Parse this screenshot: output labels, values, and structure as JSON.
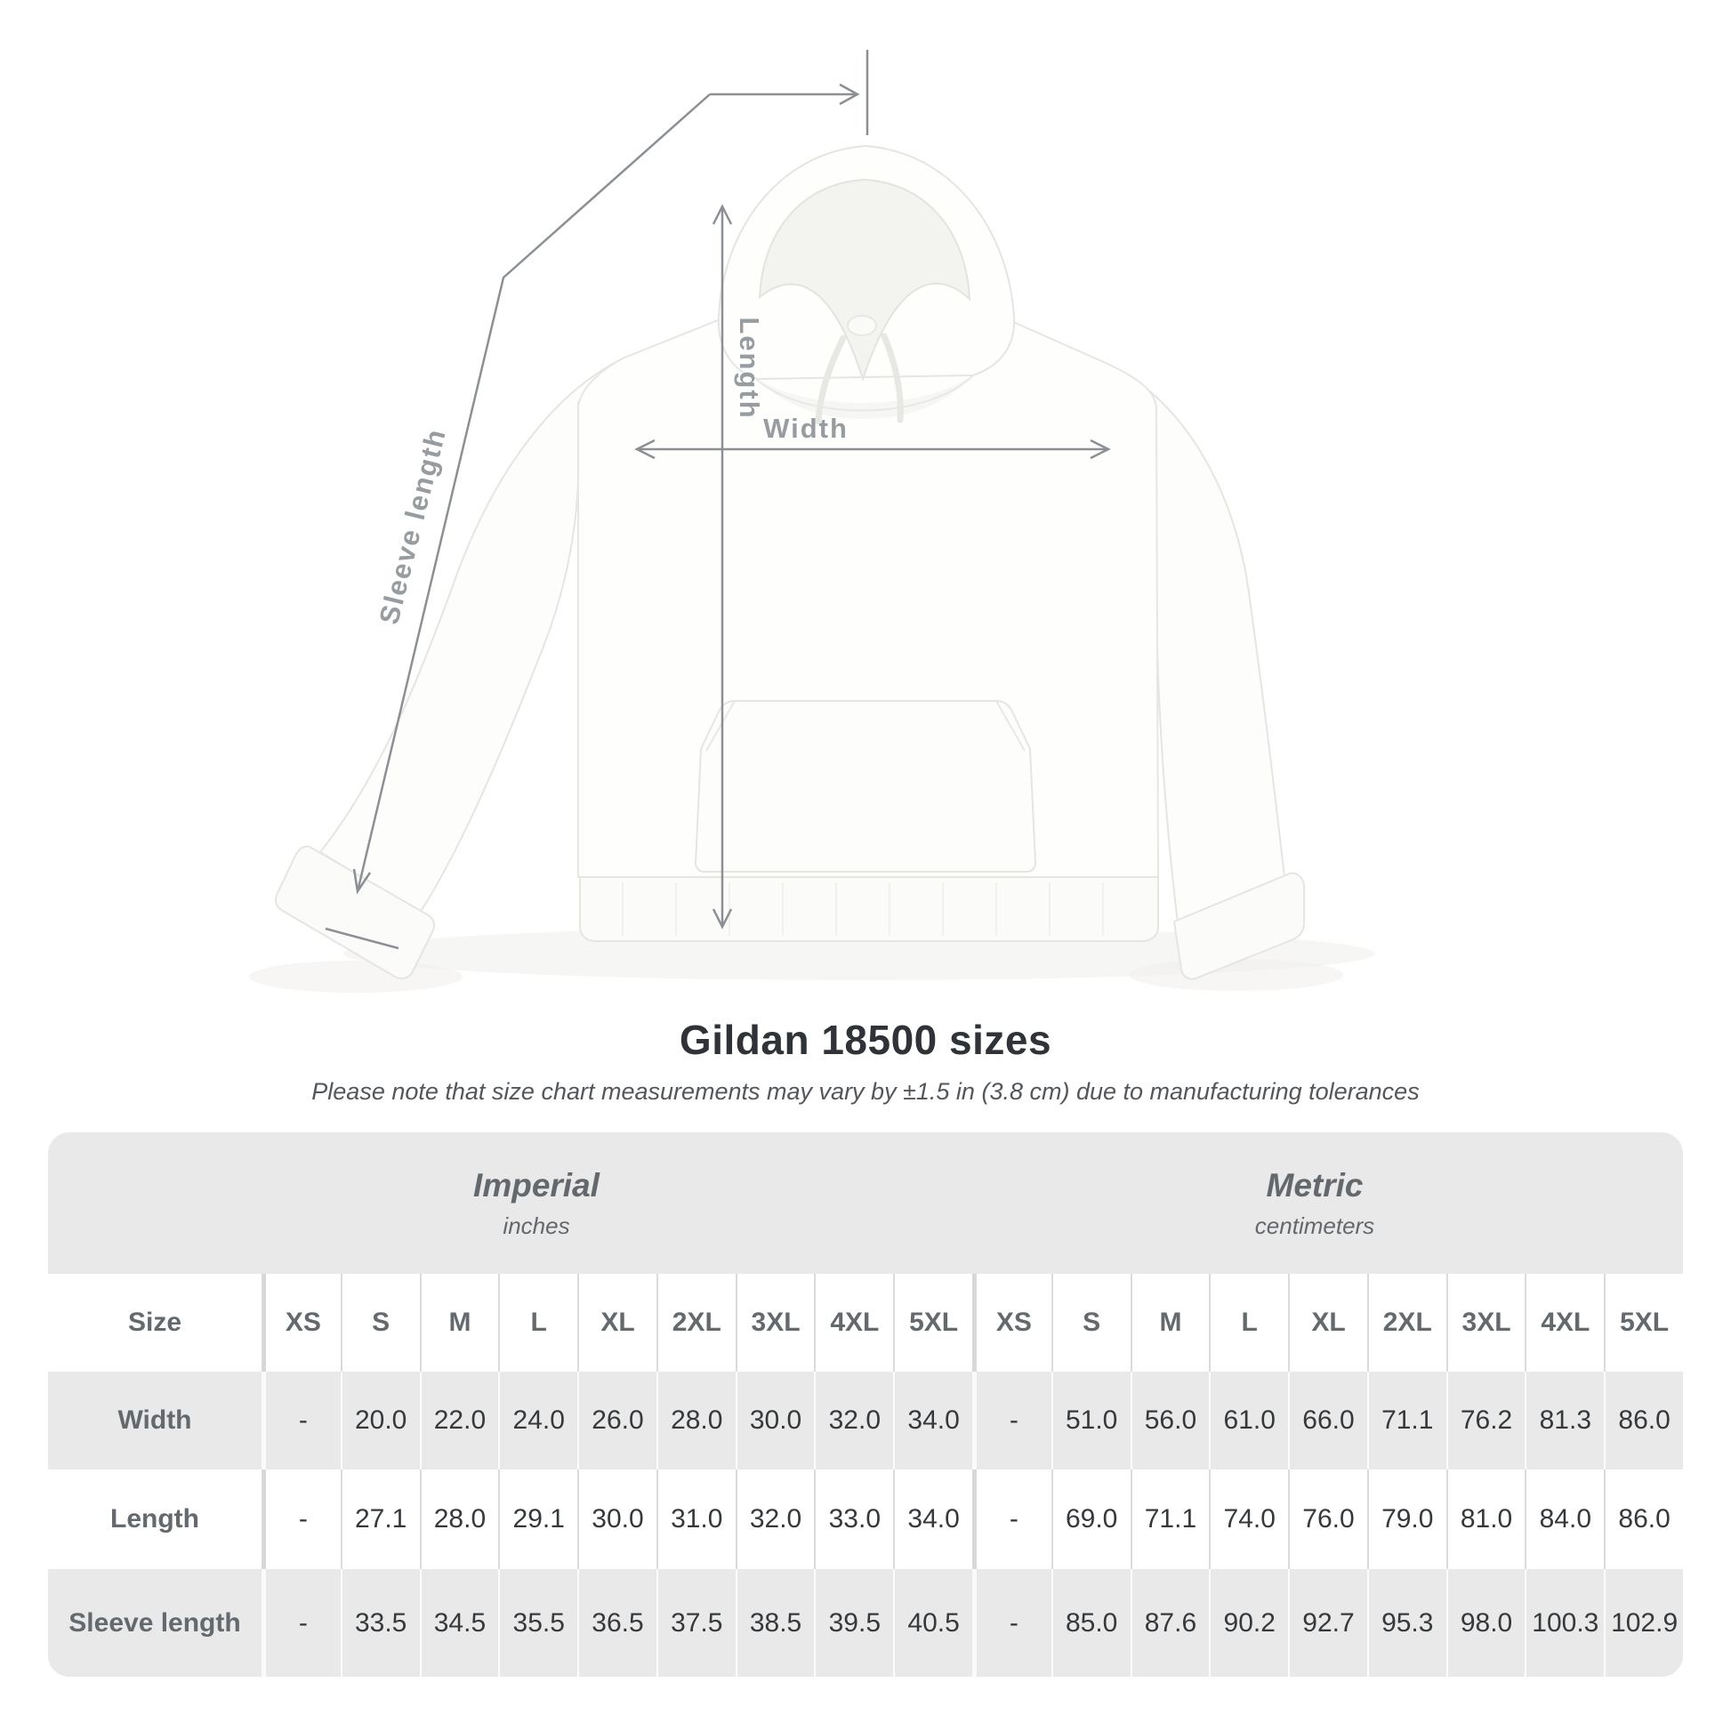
{
  "figure": {
    "length_label": "Length",
    "width_label": "Width",
    "sleeve_label": "Sleeve length",
    "line_color": "#8c9094",
    "label_color": "#979ca0"
  },
  "title": "Gildan 18500 sizes",
  "subtitle": "Please note that size chart measurements may vary by ±1.5 in (3.8 cm) due to manufacturing tolerances",
  "chart_data": {
    "type": "table",
    "title": "Gildan 18500 sizes",
    "note": "Please note that size chart measurements may vary by ±1.5 in (3.8 cm) due to manufacturing tolerances",
    "size_label": "Size",
    "column_groups": [
      {
        "label": "Imperial",
        "unit": "inches"
      },
      {
        "label": "Metric",
        "unit": "centimeters"
      }
    ],
    "columns": [
      "XS",
      "S",
      "M",
      "L",
      "XL",
      "2XL",
      "3XL",
      "4XL",
      "5XL"
    ],
    "rows": [
      {
        "label": "Width",
        "imperial": [
          "-",
          "20.0",
          "22.0",
          "24.0",
          "26.0",
          "28.0",
          "30.0",
          "32.0",
          "34.0"
        ],
        "metric": [
          "-",
          "51.0",
          "56.0",
          "61.0",
          "66.0",
          "71.1",
          "76.2",
          "81.3",
          "86.0"
        ]
      },
      {
        "label": "Length",
        "imperial": [
          "-",
          "27.1",
          "28.0",
          "29.1",
          "30.0",
          "31.0",
          "32.0",
          "33.0",
          "34.0"
        ],
        "metric": [
          "-",
          "69.0",
          "71.1",
          "74.0",
          "76.0",
          "79.0",
          "81.0",
          "84.0",
          "86.0"
        ]
      },
      {
        "label": "Sleeve length",
        "imperial": [
          "-",
          "33.5",
          "34.5",
          "35.5",
          "36.5",
          "37.5",
          "38.5",
          "39.5",
          "40.5"
        ],
        "metric": [
          "-",
          "85.0",
          "87.6",
          "90.2",
          "92.7",
          "95.3",
          "98.0",
          "100.3",
          "102.9"
        ]
      }
    ]
  }
}
